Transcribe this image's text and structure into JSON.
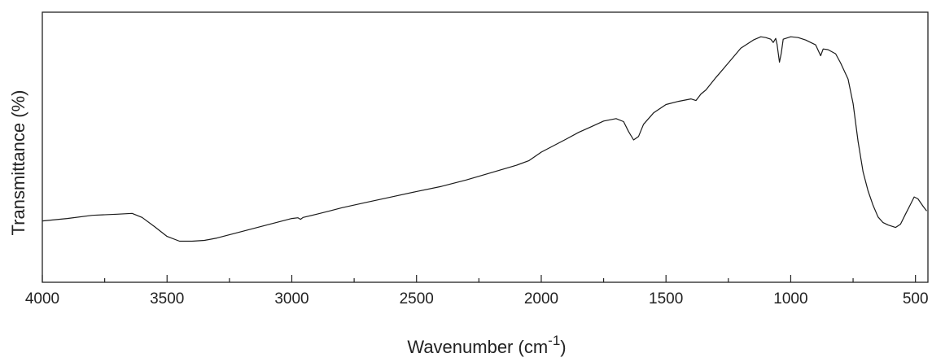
{
  "chart_data": {
    "type": "line",
    "title": "",
    "xlabel": "Wavenumber (cm",
    "xlabel_superscript": "-1",
    "xlabel_suffix": ")",
    "ylabel": "Transmittance (%)",
    "xlim": [
      4000,
      450
    ],
    "x_reversed": true,
    "ylim": [
      0,
      100
    ],
    "y_tick_labels_shown": false,
    "grid": false,
    "legend": "none",
    "line_color": "#1a1a1a",
    "x_ticks": [
      4000,
      3500,
      3000,
      2500,
      2000,
      1500,
      1000,
      500
    ],
    "x_tick_labels": [
      "4000",
      "3500",
      "3000",
      "2500",
      "2000",
      "1500",
      "1000",
      "500"
    ],
    "series": [
      {
        "points": [
          [
            4000,
            22.7
          ],
          [
            3900,
            23.6
          ],
          [
            3800,
            24.8
          ],
          [
            3700,
            25.2
          ],
          [
            3640,
            25.5
          ],
          [
            3600,
            24.0
          ],
          [
            3550,
            20.6
          ],
          [
            3500,
            17.0
          ],
          [
            3450,
            15.2
          ],
          [
            3400,
            15.2
          ],
          [
            3350,
            15.5
          ],
          [
            3300,
            16.4
          ],
          [
            3200,
            18.8
          ],
          [
            3100,
            21.2
          ],
          [
            3000,
            23.6
          ],
          [
            2975,
            23.9
          ],
          [
            2965,
            23.3
          ],
          [
            2955,
            24.0
          ],
          [
            2900,
            25.2
          ],
          [
            2850,
            26.4
          ],
          [
            2800,
            27.6
          ],
          [
            2700,
            29.6
          ],
          [
            2600,
            31.6
          ],
          [
            2500,
            33.6
          ],
          [
            2400,
            35.5
          ],
          [
            2300,
            37.9
          ],
          [
            2200,
            40.6
          ],
          [
            2100,
            43.3
          ],
          [
            2050,
            45.0
          ],
          [
            2000,
            48.2
          ],
          [
            1950,
            50.6
          ],
          [
            1900,
            53.0
          ],
          [
            1850,
            55.5
          ],
          [
            1800,
            57.6
          ],
          [
            1750,
            59.7
          ],
          [
            1700,
            60.6
          ],
          [
            1670,
            59.5
          ],
          [
            1650,
            55.8
          ],
          [
            1630,
            52.7
          ],
          [
            1610,
            54.0
          ],
          [
            1590,
            58.5
          ],
          [
            1550,
            62.7
          ],
          [
            1500,
            65.8
          ],
          [
            1450,
            67.0
          ],
          [
            1400,
            67.9
          ],
          [
            1380,
            67.3
          ],
          [
            1360,
            69.7
          ],
          [
            1340,
            71.2
          ],
          [
            1300,
            75.8
          ],
          [
            1250,
            81.2
          ],
          [
            1200,
            86.7
          ],
          [
            1150,
            89.7
          ],
          [
            1120,
            90.9
          ],
          [
            1100,
            90.6
          ],
          [
            1080,
            90.0
          ],
          [
            1070,
            88.8
          ],
          [
            1060,
            90.3
          ],
          [
            1055,
            88.2
          ],
          [
            1045,
            81.5
          ],
          [
            1038,
            84.8
          ],
          [
            1030,
            90.0
          ],
          [
            1000,
            90.9
          ],
          [
            970,
            90.6
          ],
          [
            940,
            89.7
          ],
          [
            900,
            87.9
          ],
          [
            880,
            83.9
          ],
          [
            870,
            86.4
          ],
          [
            850,
            86.1
          ],
          [
            820,
            84.6
          ],
          [
            800,
            81.2
          ],
          [
            770,
            75.2
          ],
          [
            750,
            66.1
          ],
          [
            730,
            52.1
          ],
          [
            710,
            40.9
          ],
          [
            690,
            33.9
          ],
          [
            670,
            28.5
          ],
          [
            650,
            24.2
          ],
          [
            630,
            22.1
          ],
          [
            610,
            21.2
          ],
          [
            590,
            20.6
          ],
          [
            580,
            20.3
          ],
          [
            560,
            21.5
          ],
          [
            540,
            25.2
          ],
          [
            520,
            28.8
          ],
          [
            505,
            31.6
          ],
          [
            490,
            30.9
          ],
          [
            470,
            28.2
          ],
          [
            455,
            26.4
          ]
        ]
      }
    ]
  }
}
